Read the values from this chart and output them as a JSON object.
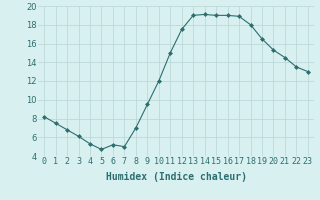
{
  "x": [
    0,
    1,
    2,
    3,
    4,
    5,
    6,
    7,
    8,
    9,
    10,
    11,
    12,
    13,
    14,
    15,
    16,
    17,
    18,
    19,
    20,
    21,
    22,
    23
  ],
  "y": [
    8.2,
    7.5,
    6.8,
    6.1,
    5.3,
    4.7,
    5.2,
    5.0,
    7.0,
    9.5,
    12.0,
    15.0,
    17.5,
    19.0,
    19.1,
    19.0,
    19.0,
    18.9,
    18.0,
    16.5,
    15.3,
    14.5,
    13.5,
    13.0
  ],
  "line_color": "#2d6e6e",
  "marker": "D",
  "marker_size": 2,
  "bg_color": "#d8f0f0",
  "grid_color": "#b8d4d4",
  "xlabel": "Humidex (Indice chaleur)",
  "ylim": [
    4,
    20
  ],
  "xlim": [
    -0.5,
    23.5
  ],
  "yticks": [
    4,
    6,
    8,
    10,
    12,
    14,
    16,
    18,
    20
  ],
  "xtick_labels": [
    "0",
    "1",
    "2",
    "3",
    "4",
    "5",
    "6",
    "7",
    "8",
    "9",
    "10",
    "11",
    "12",
    "13",
    "14",
    "15",
    "16",
    "17",
    "18",
    "19",
    "20",
    "21",
    "22",
    "23"
  ],
  "xlabel_fontsize": 7,
  "tick_fontsize": 6
}
